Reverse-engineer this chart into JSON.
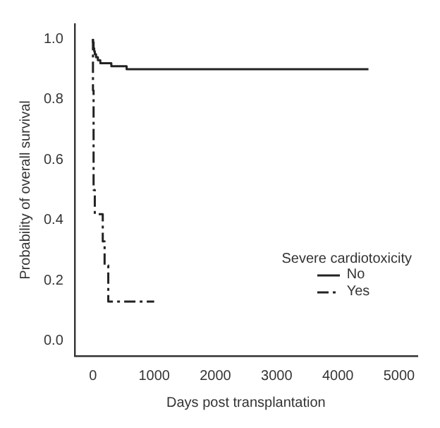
{
  "chart_data": {
    "type": "step",
    "xlabel": "Days post transplantation",
    "ylabel": "Probability of overall survival",
    "legend_title": "Severe cardiotoxicity",
    "legend": "right",
    "xlim": [
      -300,
      5300
    ],
    "xticks": [
      0,
      1000,
      2000,
      3000,
      4000,
      5000
    ],
    "ylim": [
      -0.05,
      1.05
    ],
    "yticks": [
      {
        "value": 0,
        "label": "0.0"
      },
      0.2,
      0.4,
      0.6,
      0.8,
      {
        "value": 1,
        "label": "1.0"
      }
    ],
    "series": [
      {
        "name": "No",
        "color": "#222222",
        "line_style": "solid",
        "x": [
          0,
          10,
          20,
          30,
          50,
          80,
          120,
          200,
          300,
          400,
          550,
          700,
          4500
        ],
        "values": [
          1,
          0.99,
          0.97,
          0.96,
          0.95,
          0.94,
          0.93,
          0.92,
          0.92,
          0.91,
          0.91,
          0.9,
          0.9
        ]
      },
      {
        "name": "Yes",
        "color": "#222222",
        "line_style": "dashed",
        "x": [
          0,
          10,
          30,
          160,
          190,
          250,
          280,
          1000
        ],
        "values": [
          1,
          0.83,
          0.5,
          0.42,
          0.33,
          0.25,
          0.13,
          0.13
        ]
      }
    ]
  }
}
